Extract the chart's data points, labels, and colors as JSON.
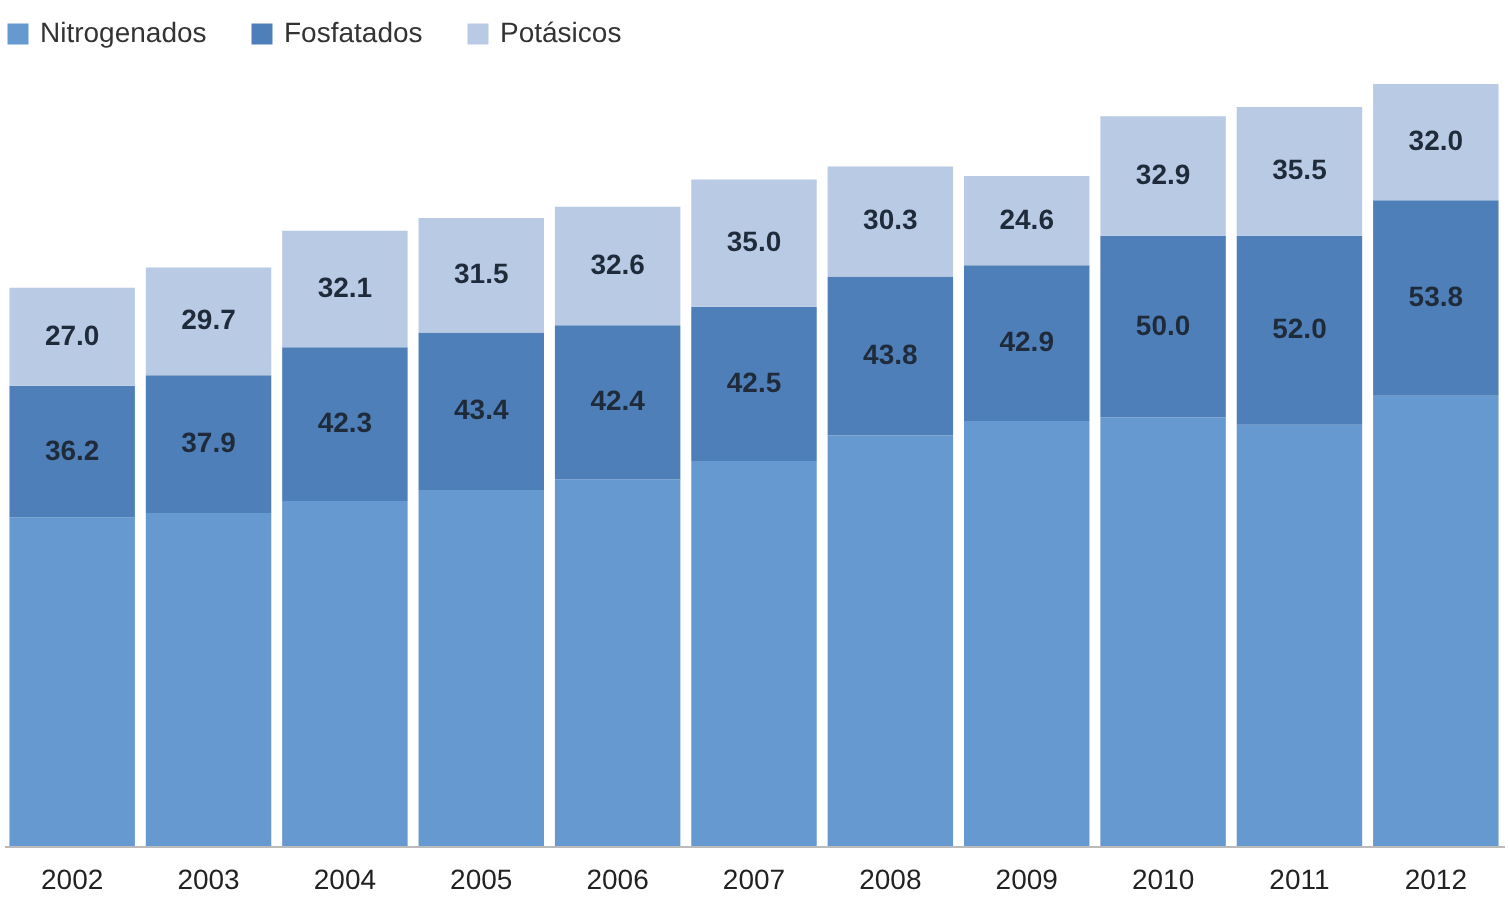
{
  "chart_data": {
    "type": "bar",
    "stacked": true,
    "legend": "top",
    "categories": [
      "2002",
      "2003",
      "2004",
      "2005",
      "2006",
      "2007",
      "2008",
      "2009",
      "2010",
      "2011",
      "2012"
    ],
    "series": [
      {
        "name": "Nitrogenados",
        "color": "#6699cf",
        "values": [
          90.5,
          91.7,
          95,
          98,
          101,
          106,
          113,
          117,
          118,
          116,
          124
        ]
      },
      {
        "name": "Fosfatados",
        "color": "#4f7fb8",
        "values": [
          36.2,
          37.9,
          42.3,
          43.4,
          42.4,
          42.5,
          43.8,
          42.9,
          50.0,
          52.0,
          53.8
        ],
        "value_labels": [
          "36.2",
          "37.9",
          "42.3",
          "43.4",
          "42.4",
          "42.5",
          "43.8",
          "42.9",
          "50.0",
          "52.0",
          "53.8"
        ]
      },
      {
        "name": "Potásicos",
        "color": "#b9cae4",
        "values": [
          27.0,
          29.7,
          32.1,
          31.5,
          32.6,
          35.0,
          30.3,
          24.6,
          32.9,
          35.5,
          32.0
        ],
        "value_labels": [
          "27.0",
          "29.7",
          "32.1",
          "31.5",
          "32.6",
          "35.0",
          "30.3",
          "24.6",
          "32.9",
          "35.5",
          "32.0"
        ]
      }
    ]
  }
}
